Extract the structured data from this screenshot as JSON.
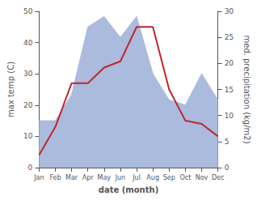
{
  "chart_data": {
    "type": "line",
    "categories": [
      "Jan",
      "Feb",
      "Mar",
      "Apr",
      "May",
      "Jun",
      "Jul",
      "Aug",
      "Sep",
      "Oct",
      "Nov",
      "Dec"
    ],
    "xlabel": "date (month)",
    "ylabel": "max temp (C)",
    "y2label": "med. precipitation (kg/m2)",
    "series": [
      {
        "type": "area",
        "axis": "y2",
        "color": "#aabbdd",
        "values": [
          9,
          9,
          14,
          27,
          29,
          25,
          29,
          18,
          13,
          12,
          18,
          13
        ]
      },
      {
        "type": "line",
        "color": "#c0272d",
        "values": [
          4,
          13,
          27,
          27,
          32,
          34,
          45,
          45,
          25,
          15,
          14,
          10
        ]
      }
    ],
    "ylim": [
      0,
      50
    ],
    "yticks": [
      0,
      10,
      20,
      30,
      40,
      50
    ],
    "y2lim": [
      0,
      30
    ],
    "y2ticks": [
      0,
      5,
      10,
      15,
      20,
      25,
      30
    ],
    "grid": false
  }
}
